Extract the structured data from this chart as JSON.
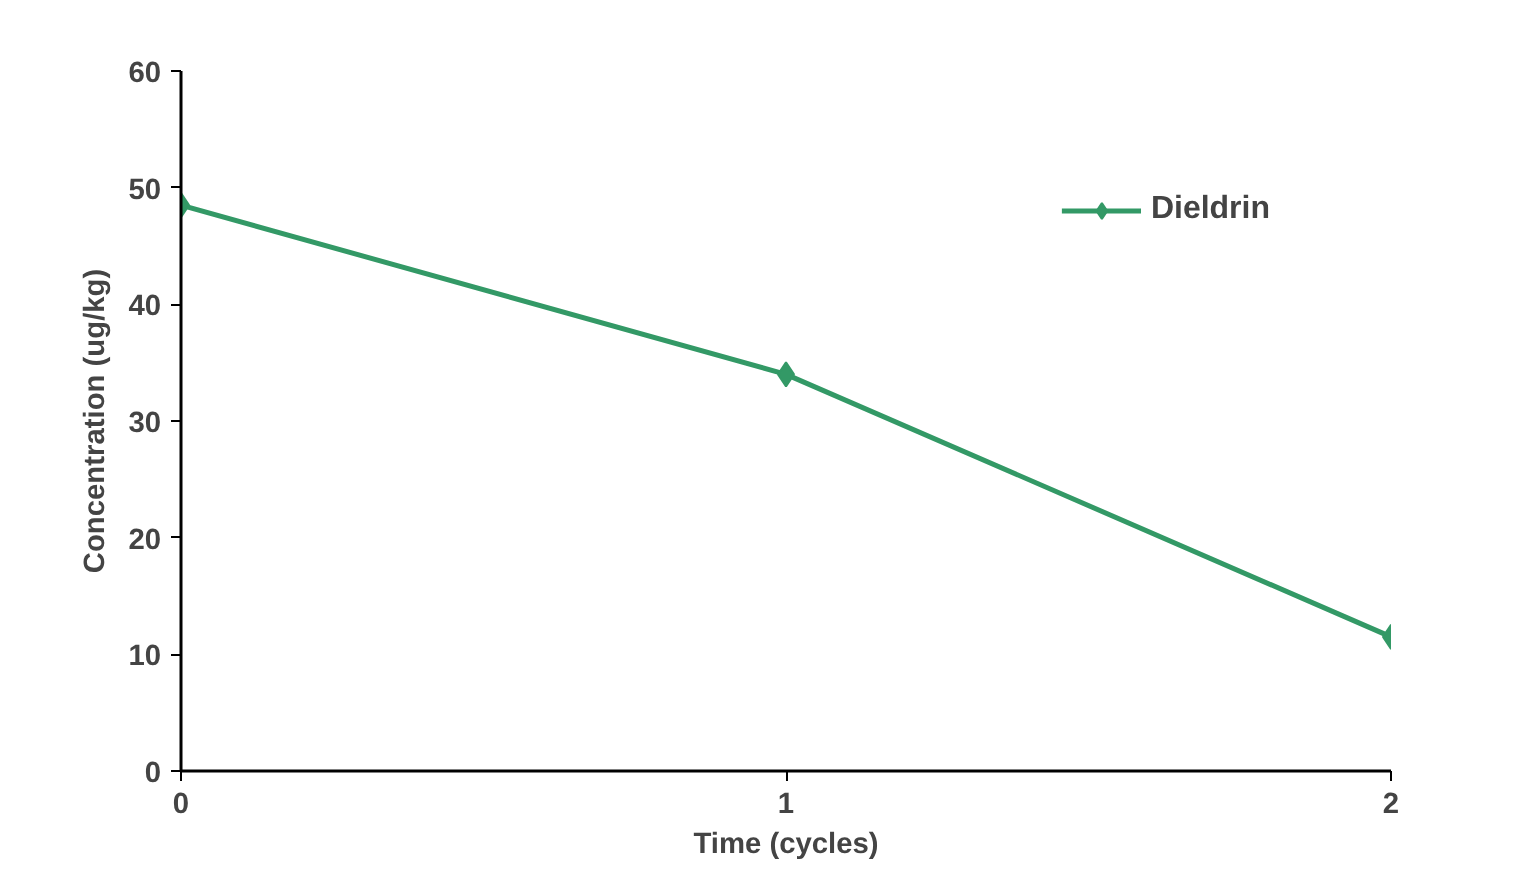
{
  "chart_data": {
    "type": "line",
    "xlabel": "Time (cycles)",
    "ylabel": "Concentration (ug/kg)",
    "x": [
      0,
      1,
      2
    ],
    "series": [
      {
        "name": "Dieldrin",
        "color": "#339966",
        "values": [
          48.5,
          34,
          11.5
        ]
      }
    ],
    "xlim": [
      0,
      2
    ],
    "xticks": [
      0,
      1,
      2
    ],
    "ylim": [
      0,
      60
    ],
    "yticks": [
      0,
      10,
      20,
      30,
      40,
      50,
      60
    ],
    "grid": false,
    "legend": "top right",
    "marker": "diamond",
    "line_style": "solid"
  }
}
